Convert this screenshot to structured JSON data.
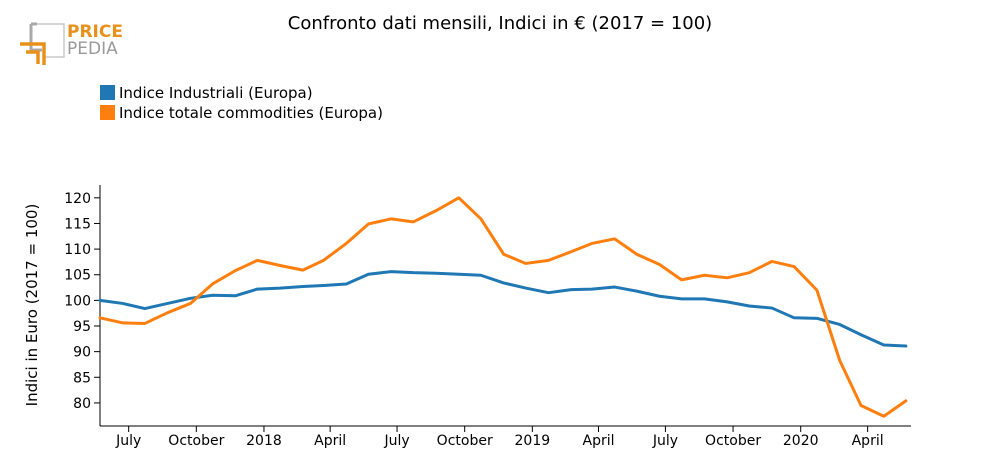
{
  "logo": {
    "line1": "PRICE",
    "line2": "PEDIA",
    "colors": {
      "brand_orange": "#e8901c",
      "brand_gray": "#9a9a9a"
    }
  },
  "chart_data": {
    "type": "line",
    "title": "Confronto dati mensili, Indici in € (2017 = 100)",
    "xlabel": "",
    "ylabel": "Indici in Euro (2017 = 100)",
    "ylim": [
      75.5,
      122.5
    ],
    "y_ticks": [
      80,
      85,
      90,
      95,
      100,
      105,
      110,
      115,
      120
    ],
    "x_range": [
      "2017-05-23",
      "2020-05-30"
    ],
    "x_ticks": [
      {
        "label": "July",
        "date": "2017-07-01"
      },
      {
        "label": "October",
        "date": "2017-10-01"
      },
      {
        "label": "2018",
        "date": "2018-01-01"
      },
      {
        "label": "April",
        "date": "2018-04-01"
      },
      {
        "label": "July",
        "date": "2018-07-01"
      },
      {
        "label": "October",
        "date": "2018-10-01"
      },
      {
        "label": "2019",
        "date": "2019-01-01"
      },
      {
        "label": "April",
        "date": "2019-04-01"
      },
      {
        "label": "July",
        "date": "2019-07-01"
      },
      {
        "label": "October",
        "date": "2019-10-01"
      },
      {
        "label": "2020",
        "date": "2020-01-01"
      },
      {
        "label": "April",
        "date": "2020-04-01"
      }
    ],
    "x": [
      "2017-05-23",
      "2017-06-23",
      "2017-07-23",
      "2017-08-23",
      "2017-09-23",
      "2017-10-23",
      "2017-11-23",
      "2017-12-23",
      "2018-01-23",
      "2018-02-23",
      "2018-03-23",
      "2018-04-23",
      "2018-05-23",
      "2018-06-23",
      "2018-07-23",
      "2018-08-23",
      "2018-09-23",
      "2018-10-23",
      "2018-11-23",
      "2018-12-23",
      "2019-01-23",
      "2019-02-23",
      "2019-03-23",
      "2019-04-23",
      "2019-05-23",
      "2019-06-23",
      "2019-07-23",
      "2019-08-23",
      "2019-09-23",
      "2019-10-23",
      "2019-11-23",
      "2019-12-23",
      "2020-01-23",
      "2020-02-23",
      "2020-03-23",
      "2020-04-23",
      "2020-05-23"
    ],
    "series": [
      {
        "name": "Indice Industriali (Europa)",
        "color": "#1f77b4",
        "values": [
          100.0,
          99.4,
          98.4,
          99.4,
          100.4,
          101.0,
          100.9,
          102.2,
          102.4,
          102.7,
          102.9,
          103.2,
          105.1,
          105.6,
          105.4,
          105.3,
          105.1,
          104.9,
          103.4,
          102.4,
          101.5,
          102.1,
          102.2,
          102.6,
          101.8,
          100.8,
          100.3,
          100.3,
          99.7,
          98.9,
          98.5,
          96.6,
          96.5,
          95.3,
          93.3,
          91.3,
          91.1
        ]
      },
      {
        "name": "Indice totale commodities (Europa)",
        "color": "#ff7f0e",
        "values": [
          96.6,
          95.6,
          95.5,
          97.6,
          99.4,
          103.2,
          105.8,
          107.8,
          106.8,
          105.9,
          107.8,
          111.1,
          114.9,
          115.9,
          115.3,
          117.5,
          120.0,
          115.9,
          109.0,
          107.2,
          107.8,
          109.5,
          111.1,
          112.0,
          109.0,
          107.0,
          104.0,
          104.9,
          104.4,
          105.4,
          107.6,
          106.6,
          102.0,
          88.3,
          79.5,
          77.4,
          80.4
        ]
      }
    ],
    "legend_position": "top-left",
    "grid": false
  }
}
